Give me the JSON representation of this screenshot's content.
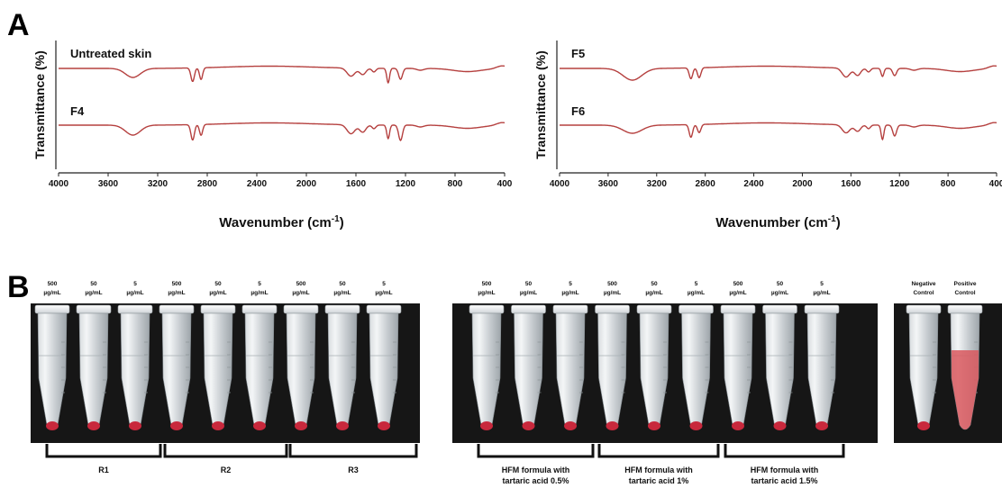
{
  "panel_a": {
    "letter": "A",
    "y_axis_title": "Transmittance (%)",
    "x_axis_title": "Wavenumber (cm",
    "x_axis_title_sup": "-1",
    "x_axis_title_close": ")"
  },
  "panel_b": {
    "letter": "B",
    "photos": [
      {
        "tubes": [
          {
            "conc": [
              "500",
              "µg/mL"
            ],
            "red": "pellet"
          },
          {
            "conc": [
              "50",
              "µg/mL"
            ],
            "red": "pellet"
          },
          {
            "conc": [
              "5",
              "µg/mL"
            ],
            "red": "pellet"
          },
          {
            "conc": [
              "500",
              "µg/mL"
            ],
            "red": "pellet"
          },
          {
            "conc": [
              "50",
              "µg/mL"
            ],
            "red": "pellet"
          },
          {
            "conc": [
              "5",
              "µg/mL"
            ],
            "red": "pellet"
          },
          {
            "conc": [
              "500",
              "µg/mL"
            ],
            "red": "pellet"
          },
          {
            "conc": [
              "50",
              "µg/mL"
            ],
            "red": "pellet"
          },
          {
            "conc": [
              "5",
              "µg/mL"
            ],
            "red": "pellet"
          }
        ],
        "groups": [
          {
            "label": [
              "R1"
            ]
          },
          {
            "label": [
              "R2"
            ]
          },
          {
            "label": [
              "R3"
            ]
          }
        ]
      },
      {
        "tubes": [
          {
            "conc": [
              "500",
              "µg/mL"
            ],
            "red": "pellet"
          },
          {
            "conc": [
              "50",
              "µg/mL"
            ],
            "red": "pellet"
          },
          {
            "conc": [
              "5",
              "µg/mL"
            ],
            "red": "pellet"
          },
          {
            "conc": [
              "500",
              "µg/mL"
            ],
            "red": "pellet"
          },
          {
            "conc": [
              "50",
              "µg/mL"
            ],
            "red": "pellet"
          },
          {
            "conc": [
              "5",
              "µg/mL"
            ],
            "red": "pellet"
          },
          {
            "conc": [
              "500",
              "µg/mL"
            ],
            "red": "pellet"
          },
          {
            "conc": [
              "50",
              "µg/mL"
            ],
            "red": "pellet"
          },
          {
            "conc": [
              "5",
              "µg/mL"
            ],
            "red": "pellet"
          }
        ],
        "groups": [
          {
            "label": [
              "HFM formula with",
              "tartaric acid 0.5%"
            ]
          },
          {
            "label": [
              "HFM formula with",
              "tartaric acid 1%"
            ]
          },
          {
            "label": [
              "HFM formula with",
              "tartaric acid 1.5%"
            ]
          }
        ]
      },
      {
        "tubes": [
          {
            "conc": [
              "Negative",
              "Control"
            ],
            "red": "pellet"
          },
          {
            "conc": [
              "Positive",
              "Control"
            ],
            "red": "full"
          }
        ],
        "groups": []
      }
    ]
  },
  "colors": {
    "trace": "#b5403f",
    "photo_background": "#161616",
    "hemolysis_red": "#c8283c",
    "lysed_red": "#d9585e"
  },
  "chart_data": [
    {
      "type": "line",
      "x_axis": {
        "label": "Wavenumber (cm-1)",
        "range": [
          4000,
          400
        ],
        "ticks": [
          4000,
          3600,
          3200,
          2800,
          2400,
          2000,
          1600,
          1200,
          800,
          400
        ]
      },
      "y_axis": {
        "label": "Transmittance (%)",
        "tick_labels": false
      },
      "series": [
        {
          "name": "Untreated skin",
          "bands": [
            {
              "x": 3400,
              "depth": 10,
              "width": 85
            },
            {
              "x": 2918,
              "depth": 15,
              "width": 20
            },
            {
              "x": 2850,
              "depth": 13,
              "width": 18
            },
            {
              "x": 1640,
              "depth": 9,
              "width": 45
            },
            {
              "x": 1545,
              "depth": 7,
              "width": 35
            },
            {
              "x": 1455,
              "depth": 4,
              "width": 22
            },
            {
              "x": 1340,
              "depth": 16,
              "width": 16
            },
            {
              "x": 1240,
              "depth": 12,
              "width": 22
            },
            {
              "x": 1080,
              "depth": 2,
              "width": 40
            }
          ]
        },
        {
          "name": "F4",
          "bands": [
            {
              "x": 3400,
              "depth": 11,
              "width": 85
            },
            {
              "x": 2918,
              "depth": 17,
              "width": 20
            },
            {
              "x": 2850,
              "depth": 12,
              "width": 18
            },
            {
              "x": 1640,
              "depth": 10,
              "width": 45
            },
            {
              "x": 1545,
              "depth": 8,
              "width": 35
            },
            {
              "x": 1455,
              "depth": 4,
              "width": 22
            },
            {
              "x": 1340,
              "depth": 15,
              "width": 16
            },
            {
              "x": 1240,
              "depth": 17,
              "width": 22
            },
            {
              "x": 1080,
              "depth": 2,
              "width": 40
            }
          ]
        }
      ]
    },
    {
      "type": "line",
      "x_axis": {
        "label": "Wavenumber (cm-1)",
        "range": [
          4000,
          400
        ],
        "ticks": [
          4000,
          3600,
          3200,
          2800,
          2400,
          2000,
          1600,
          1200,
          800,
          400
        ]
      },
      "y_axis": {
        "label": "Transmittance (%)",
        "tick_labels": false
      },
      "series": [
        {
          "name": "F5",
          "bands": [
            {
              "x": 3400,
              "depth": 13,
              "width": 110
            },
            {
              "x": 2918,
              "depth": 12,
              "width": 20
            },
            {
              "x": 2850,
              "depth": 11,
              "width": 20
            },
            {
              "x": 1640,
              "depth": 10,
              "width": 45
            },
            {
              "x": 1545,
              "depth": 8,
              "width": 35
            },
            {
              "x": 1455,
              "depth": 4,
              "width": 22
            },
            {
              "x": 1340,
              "depth": 9,
              "width": 16
            },
            {
              "x": 1240,
              "depth": 8,
              "width": 22
            },
            {
              "x": 1080,
              "depth": 2,
              "width": 40
            }
          ]
        },
        {
          "name": "F6",
          "bands": [
            {
              "x": 3400,
              "depth": 9,
              "width": 110
            },
            {
              "x": 2918,
              "depth": 14,
              "width": 20
            },
            {
              "x": 2850,
              "depth": 9,
              "width": 20
            },
            {
              "x": 1640,
              "depth": 9,
              "width": 45
            },
            {
              "x": 1545,
              "depth": 7,
              "width": 35
            },
            {
              "x": 1455,
              "depth": 4,
              "width": 22
            },
            {
              "x": 1340,
              "depth": 16,
              "width": 16
            },
            {
              "x": 1240,
              "depth": 12,
              "width": 22
            },
            {
              "x": 1080,
              "depth": 2,
              "width": 40
            }
          ]
        }
      ]
    }
  ]
}
